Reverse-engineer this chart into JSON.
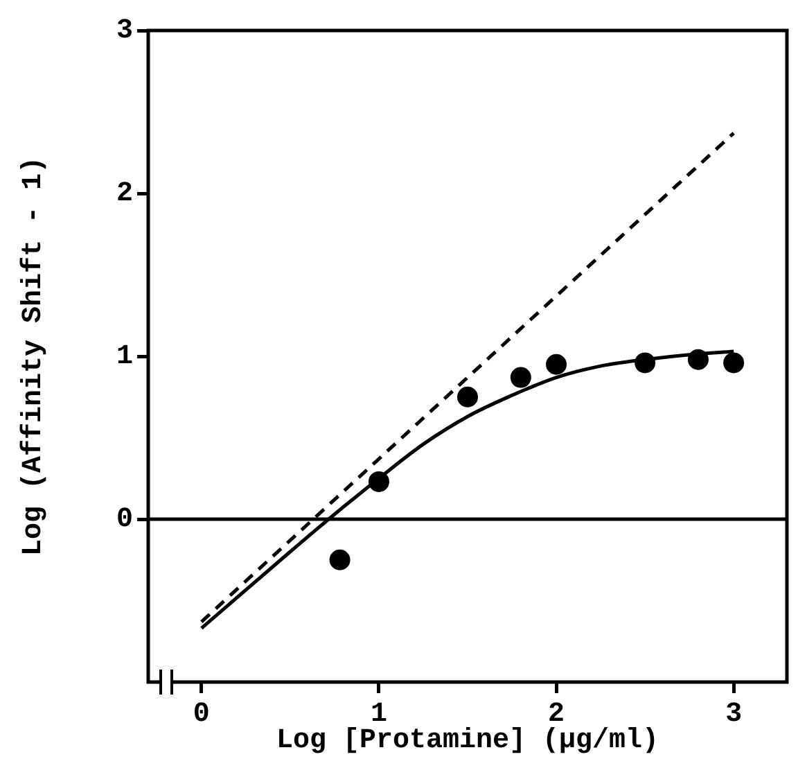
{
  "chart_data": {
    "type": "scatter",
    "xlabel": "Log [Protamine] (μg/ml)",
    "ylabel": "Log (Affinity Shift - 1)",
    "xlim": [
      -0.3,
      3.3
    ],
    "xticks": [
      0,
      1,
      2,
      3
    ],
    "ylim": [
      -1,
      3
    ],
    "yticks": [
      0,
      1,
      2,
      3
    ],
    "grid": false,
    "legend": false,
    "ref_lines": [
      {
        "axis": "y",
        "value": 0,
        "color": "#000000",
        "line_style": "solid"
      }
    ],
    "series": [
      {
        "color": "#000000",
        "marker": "circle",
        "x": [
          0.78,
          1,
          1.5,
          1.8,
          2,
          2.5,
          2.8,
          3
        ],
        "values": [
          -0.25,
          0.23,
          0.75,
          0.87,
          0.95,
          0.96,
          0.98,
          0.96
        ]
      },
      {
        "type": "line",
        "color": "#000000",
        "marker": "none",
        "line_style": "solid",
        "x": [
          0,
          0.5,
          0.75,
          1,
          1.25,
          1.5,
          1.75,
          2,
          2.25,
          2.5,
          2.75,
          3
        ],
        "values": [
          -0.67,
          -0.2,
          0.03,
          0.25,
          0.46,
          0.63,
          0.76,
          0.87,
          0.94,
          0.98,
          1.01,
          1.03
        ]
      },
      {
        "type": "line",
        "color": "#000000",
        "marker": "none",
        "line_style": "dashed",
        "x": [
          0,
          3
        ],
        "values": [
          -0.63,
          2.37
        ]
      }
    ]
  }
}
